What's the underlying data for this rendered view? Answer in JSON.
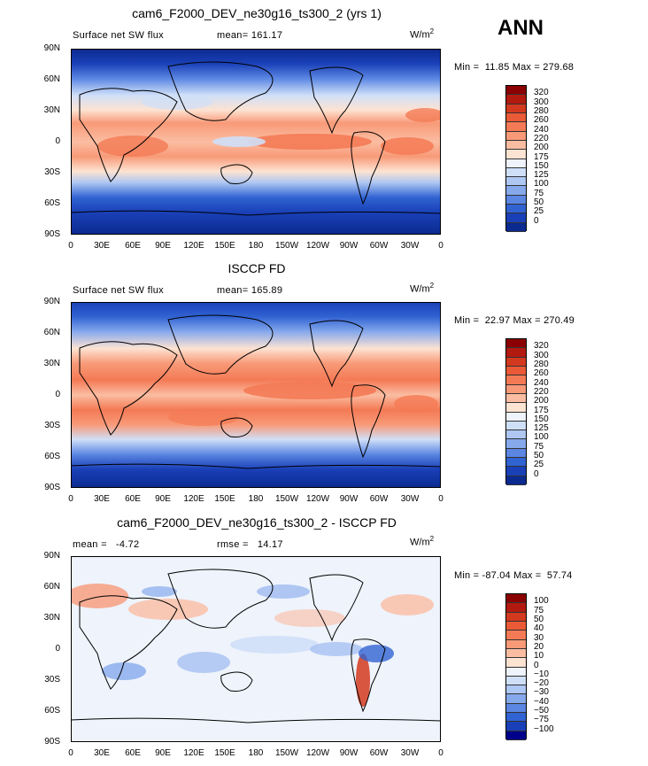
{
  "season": "ANN",
  "unit_base": "W/m",
  "unit_exp": "2",
  "lat_labels": [
    "90N",
    "60N",
    "30N",
    "0",
    "30S",
    "60S",
    "90S"
  ],
  "lon_labels": [
    "0",
    "30E",
    "60E",
    "90E",
    "120E",
    "150E",
    "180",
    "150W",
    "120W",
    "90W",
    "60W",
    "30W",
    "0"
  ],
  "panels": [
    {
      "title": "cam6_F2000_DEV_ne30g16_ts300_2 (yrs 1)",
      "variable": "Surface net SW flux",
      "mean_label": "mean=",
      "mean_value": "161.17",
      "min_label": "Min =",
      "min_value": "11.85",
      "max_label": "Max =",
      "max_value": "279.68",
      "colorbar_levels": [
        "320",
        "300",
        "280",
        "260",
        "240",
        "220",
        "200",
        "175",
        "150",
        "125",
        "100",
        "75",
        "50",
        "25",
        "0"
      ],
      "colorbar_colors": [
        "#8b0000",
        "#b21a10",
        "#d3391e",
        "#ea5a37",
        "#f47a55",
        "#f89a78",
        "#fbbda2",
        "#fde3d2",
        "#eef3fc",
        "#cfdff8",
        "#aec7f3",
        "#86a9ec",
        "#5b86e2",
        "#3163d2",
        "#1a40b8",
        "#0b2a8f"
      ]
    },
    {
      "title": "ISCCP FD",
      "variable": "Surface net SW flux",
      "mean_label": "mean=",
      "mean_value": "165.89",
      "min_label": "Min =",
      "min_value": "22.97",
      "max_label": "Max =",
      "max_value": "270.49",
      "colorbar_levels": [
        "320",
        "300",
        "280",
        "260",
        "240",
        "220",
        "200",
        "175",
        "150",
        "125",
        "100",
        "75",
        "50",
        "25",
        "0"
      ],
      "colorbar_colors": [
        "#8b0000",
        "#b21a10",
        "#d3391e",
        "#ea5a37",
        "#f47a55",
        "#f89a78",
        "#fbbda2",
        "#fde3d2",
        "#eef3fc",
        "#cfdff8",
        "#aec7f3",
        "#86a9ec",
        "#5b86e2",
        "#3163d2",
        "#1a40b8",
        "#0b2a8f"
      ]
    },
    {
      "title": "cam6_F2000_DEV_ne30g16_ts300_2 - ISCCP FD",
      "mean_label": "mean =",
      "mean_value": "-4.72",
      "rmse_label": "rmse =",
      "rmse_value": "14.17",
      "min_label": "Min =",
      "min_value": "-87.04",
      "max_label": "Max =",
      "max_value": "57.74",
      "colorbar_levels": [
        "100",
        "75",
        "50",
        "40",
        "30",
        "20",
        "10",
        "0",
        "−10",
        "−20",
        "−30",
        "−40",
        "−50",
        "−75",
        "−100"
      ],
      "colorbar_colors": [
        "#8b0000",
        "#b21a10",
        "#d3391e",
        "#ea5a37",
        "#f47a55",
        "#f89a78",
        "#fbbda2",
        "#fde3d2",
        "#eef3fc",
        "#cfdff8",
        "#aec7f3",
        "#86a9ec",
        "#5b86e2",
        "#3163d2",
        "#1a40b8",
        "#00008b"
      ]
    }
  ]
}
